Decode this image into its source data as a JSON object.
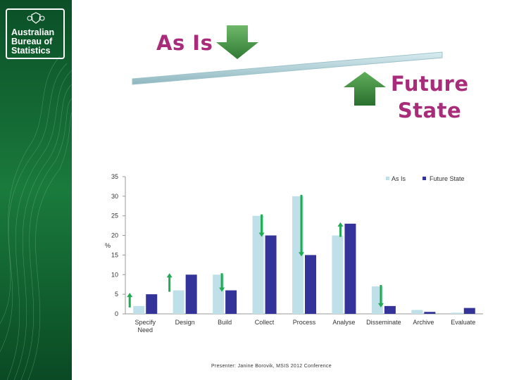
{
  "logo": {
    "line1": "Australian",
    "line2": "Bureau of",
    "line3": "Statistics"
  },
  "labels": {
    "as_is": "As Is",
    "future_line1": "Future",
    "future_line2": "State"
  },
  "footer": {
    "text": "Presenter: Janine Borovik, MSIS 2012 Conference"
  },
  "colors": {
    "as_is": "#bfe0e8",
    "future": "#33339a",
    "arrow": "#22aa55",
    "title": "#a92c7a",
    "sidebar": "#0d5a2c"
  },
  "chart_data": {
    "type": "bar",
    "categories": [
      "Specify Need",
      "Design",
      "Build",
      "Collect",
      "Process",
      "Analyse",
      "Disseminate",
      "Archive",
      "Evaluate"
    ],
    "series": [
      {
        "name": "As Is",
        "values": [
          2,
          6,
          10,
          25,
          30,
          20,
          7,
          1,
          0.3
        ]
      },
      {
        "name": "Future State",
        "values": [
          5,
          10,
          6,
          20,
          15,
          23,
          2,
          0.5,
          1.5
        ]
      }
    ],
    "ylabel": "%",
    "ylim": [
      0,
      35
    ],
    "yticks": [
      0,
      5,
      10,
      15,
      20,
      25,
      30,
      35
    ],
    "legend": "top-right",
    "grid": false
  }
}
